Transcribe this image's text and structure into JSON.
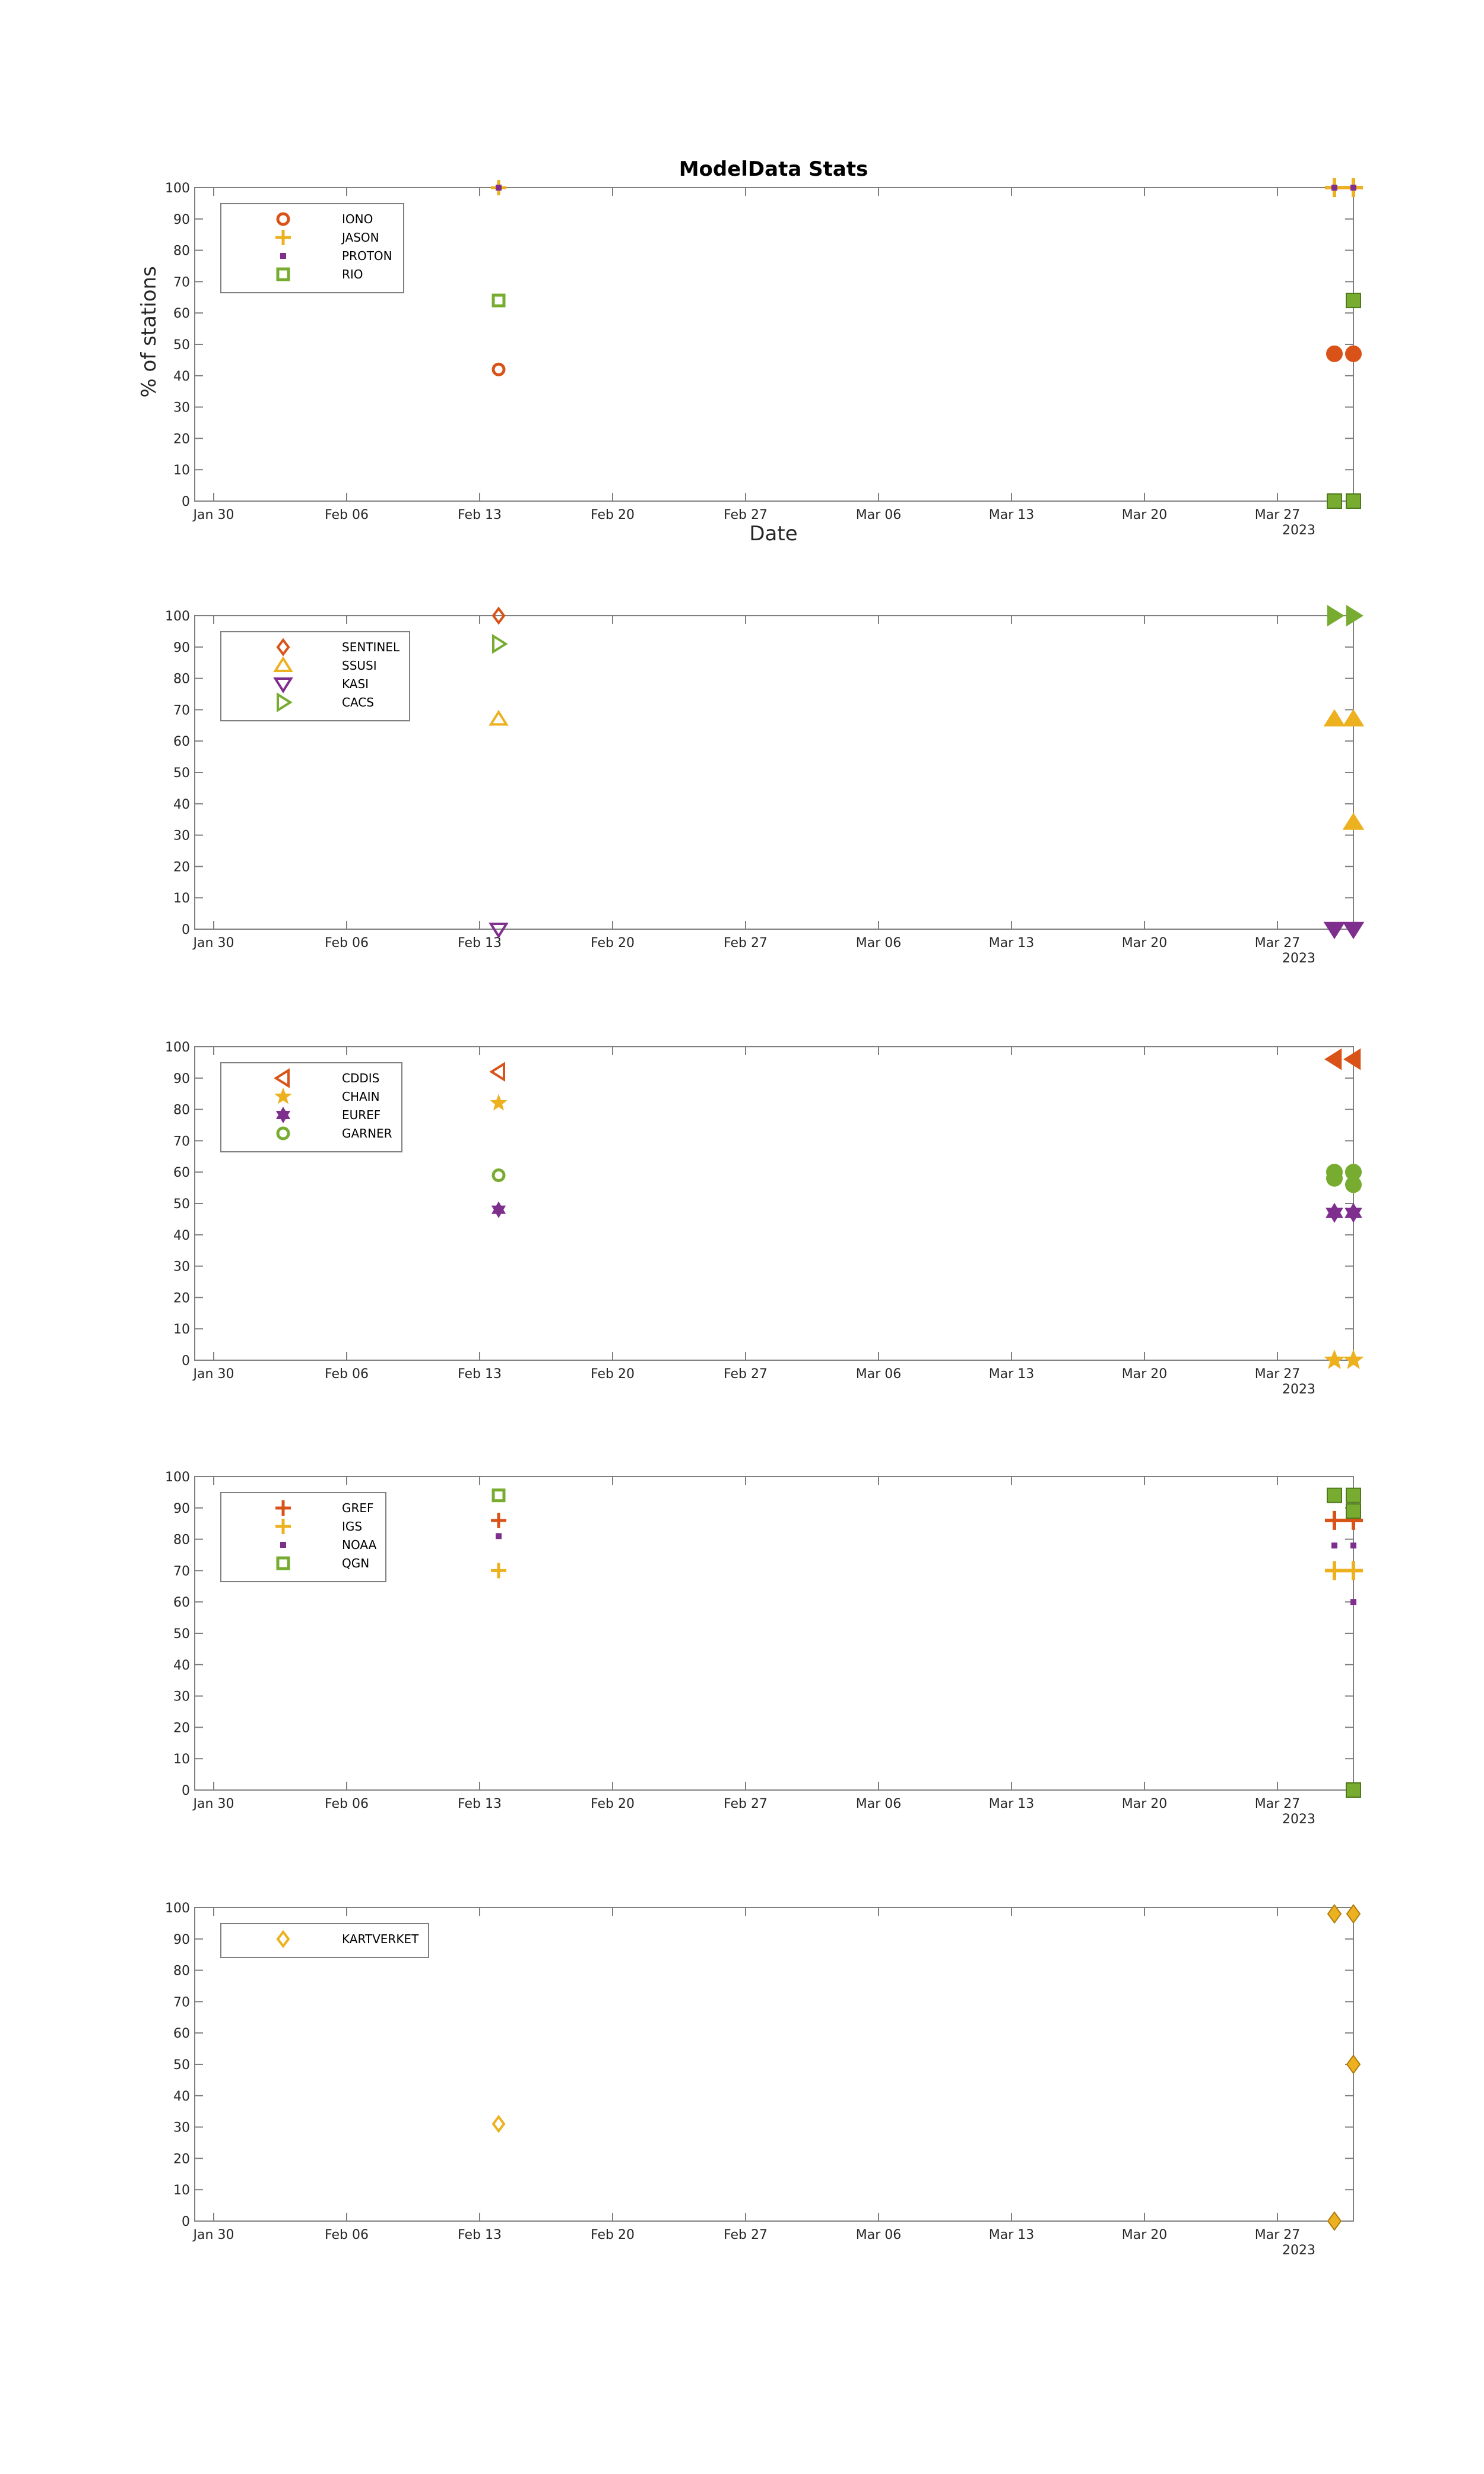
{
  "figure": {
    "title": "ModelData Stats"
  },
  "chart_data": [
    {
      "type": "scatter",
      "title": "ModelData Stats",
      "xlabel": "Date",
      "ylabel": "% of stations",
      "x_ticks": [
        "Jan 30",
        "Feb 06",
        "Feb 13",
        "Feb 20",
        "Feb 27",
        "Mar 06",
        "Mar 13",
        "Mar 20",
        "Mar 27"
      ],
      "x_tick_year": "2023",
      "xlim": [
        "2023-01-29",
        "2023-03-31"
      ],
      "ylim": [
        0,
        100
      ],
      "y_ticks": [
        0,
        10,
        20,
        30,
        40,
        50,
        60,
        70,
        80,
        90,
        100
      ],
      "legend_position": "top-left",
      "grid": false,
      "series": [
        {
          "name": "IONO",
          "marker": "circle",
          "color": "#d95319",
          "points": [
            [
              "2023-02-14",
              42
            ],
            [
              "2023-03-30",
              47
            ],
            [
              "2023-03-31",
              47
            ]
          ]
        },
        {
          "name": "JASON",
          "marker": "plus",
          "color": "#edb120",
          "points": [
            [
              "2023-02-14",
              100
            ],
            [
              "2023-03-30",
              100
            ],
            [
              "2023-03-31",
              100
            ]
          ]
        },
        {
          "name": "PROTON",
          "marker": "point",
          "color": "#7e2f8e",
          "points": [
            [
              "2023-02-14",
              100
            ],
            [
              "2023-03-30",
              100
            ],
            [
              "2023-03-31",
              100
            ]
          ]
        },
        {
          "name": "RIO",
          "marker": "square",
          "color": "#77ac30",
          "points": [
            [
              "2023-02-14",
              64
            ],
            [
              "2023-03-30",
              0
            ],
            [
              "2023-03-31",
              64
            ],
            [
              "2023-03-31",
              0
            ]
          ]
        }
      ]
    },
    {
      "type": "scatter",
      "x_ticks": [
        "Jan 30",
        "Feb 06",
        "Feb 13",
        "Feb 20",
        "Feb 27",
        "Mar 06",
        "Mar 13",
        "Mar 20",
        "Mar 27"
      ],
      "x_tick_year": "2023",
      "xlim": [
        "2023-01-29",
        "2023-03-31"
      ],
      "ylim": [
        0,
        100
      ],
      "y_ticks": [
        0,
        10,
        20,
        30,
        40,
        50,
        60,
        70,
        80,
        90,
        100
      ],
      "legend_position": "top-left",
      "grid": false,
      "series": [
        {
          "name": "SENTINEL",
          "marker": "diamond",
          "color": "#d95319",
          "points": [
            [
              "2023-02-14",
              100
            ]
          ]
        },
        {
          "name": "SSUSI",
          "marker": "triangle-up",
          "color": "#edb120",
          "points": [
            [
              "2023-02-14",
              67
            ],
            [
              "2023-03-30",
              67
            ],
            [
              "2023-03-31",
              67
            ],
            [
              "2023-03-31",
              34
            ]
          ]
        },
        {
          "name": "KASI",
          "marker": "triangle-down",
          "color": "#7e2f8e",
          "points": [
            [
              "2023-02-14",
              0
            ],
            [
              "2023-03-30",
              0
            ],
            [
              "2023-03-31",
              0
            ]
          ]
        },
        {
          "name": "CACS",
          "marker": "triangle-right",
          "color": "#77ac30",
          "points": [
            [
              "2023-02-14",
              91
            ],
            [
              "2023-03-30",
              100
            ],
            [
              "2023-03-31",
              100
            ]
          ]
        }
      ]
    },
    {
      "type": "scatter",
      "x_ticks": [
        "Jan 30",
        "Feb 06",
        "Feb 13",
        "Feb 20",
        "Feb 27",
        "Mar 06",
        "Mar 13",
        "Mar 20",
        "Mar 27"
      ],
      "x_tick_year": "2023",
      "xlim": [
        "2023-01-29",
        "2023-03-31"
      ],
      "ylim": [
        0,
        100
      ],
      "y_ticks": [
        0,
        10,
        20,
        30,
        40,
        50,
        60,
        70,
        80,
        90,
        100
      ],
      "legend_position": "top-left",
      "grid": false,
      "series": [
        {
          "name": "CDDIS",
          "marker": "triangle-left",
          "color": "#d95319",
          "points": [
            [
              "2023-02-14",
              92
            ],
            [
              "2023-03-30",
              96
            ],
            [
              "2023-03-31",
              96
            ]
          ]
        },
        {
          "name": "CHAIN",
          "marker": "star",
          "color": "#edb120",
          "points": [
            [
              "2023-02-14",
              82
            ],
            [
              "2023-03-30",
              0
            ],
            [
              "2023-03-31",
              0
            ]
          ]
        },
        {
          "name": "EUREF",
          "marker": "hexagram",
          "color": "#7e2f8e",
          "points": [
            [
              "2023-02-14",
              48
            ],
            [
              "2023-03-30",
              47
            ],
            [
              "2023-03-31",
              47
            ]
          ]
        },
        {
          "name": "GARNER",
          "marker": "circle",
          "color": "#77ac30",
          "points": [
            [
              "2023-02-14",
              59
            ],
            [
              "2023-03-30",
              58
            ],
            [
              "2023-03-30",
              60
            ],
            [
              "2023-03-31",
              60
            ],
            [
              "2023-03-31",
              56
            ]
          ]
        }
      ]
    },
    {
      "type": "scatter",
      "x_ticks": [
        "Jan 30",
        "Feb 06",
        "Feb 13",
        "Feb 20",
        "Feb 27",
        "Mar 06",
        "Mar 13",
        "Mar 20",
        "Mar 27"
      ],
      "x_tick_year": "2023",
      "xlim": [
        "2023-01-29",
        "2023-03-31"
      ],
      "ylim": [
        0,
        100
      ],
      "y_ticks": [
        0,
        10,
        20,
        30,
        40,
        50,
        60,
        70,
        80,
        90,
        100
      ],
      "legend_position": "top-left",
      "grid": false,
      "series": [
        {
          "name": "GREF",
          "marker": "plus",
          "color": "#d95319",
          "points": [
            [
              "2023-02-14",
              86
            ],
            [
              "2023-03-30",
              86
            ],
            [
              "2023-03-31",
              86
            ]
          ]
        },
        {
          "name": "IGS",
          "marker": "plus",
          "color": "#edb120",
          "points": [
            [
              "2023-02-14",
              70
            ],
            [
              "2023-03-30",
              70
            ],
            [
              "2023-03-31",
              70
            ]
          ]
        },
        {
          "name": "NOAA",
          "marker": "point",
          "color": "#7e2f8e",
          "points": [
            [
              "2023-02-14",
              81
            ],
            [
              "2023-03-30",
              78
            ],
            [
              "2023-03-31",
              78
            ],
            [
              "2023-03-31",
              60
            ]
          ]
        },
        {
          "name": "QGN",
          "marker": "square",
          "color": "#77ac30",
          "points": [
            [
              "2023-02-14",
              94
            ],
            [
              "2023-03-30",
              94
            ],
            [
              "2023-03-31",
              94
            ],
            [
              "2023-03-31",
              89
            ],
            [
              "2023-03-31",
              0
            ]
          ]
        }
      ]
    },
    {
      "type": "scatter",
      "x_ticks": [
        "Jan 30",
        "Feb 06",
        "Feb 13",
        "Feb 20",
        "Feb 27",
        "Mar 06",
        "Mar 13",
        "Mar 20",
        "Mar 27"
      ],
      "x_tick_year": "2023",
      "xlim": [
        "2023-01-29",
        "2023-03-31"
      ],
      "ylim": [
        0,
        100
      ],
      "y_ticks": [
        0,
        10,
        20,
        30,
        40,
        50,
        60,
        70,
        80,
        90,
        100
      ],
      "legend_position": "top-left",
      "grid": false,
      "series": [
        {
          "name": "KARTVERKET",
          "marker": "diamond",
          "color": "#edb120",
          "points": [
            [
              "2023-02-14",
              31
            ],
            [
              "2023-03-30",
              98
            ],
            [
              "2023-03-30",
              0
            ],
            [
              "2023-03-31",
              98
            ],
            [
              "2023-03-31",
              50
            ]
          ]
        }
      ]
    }
  ]
}
